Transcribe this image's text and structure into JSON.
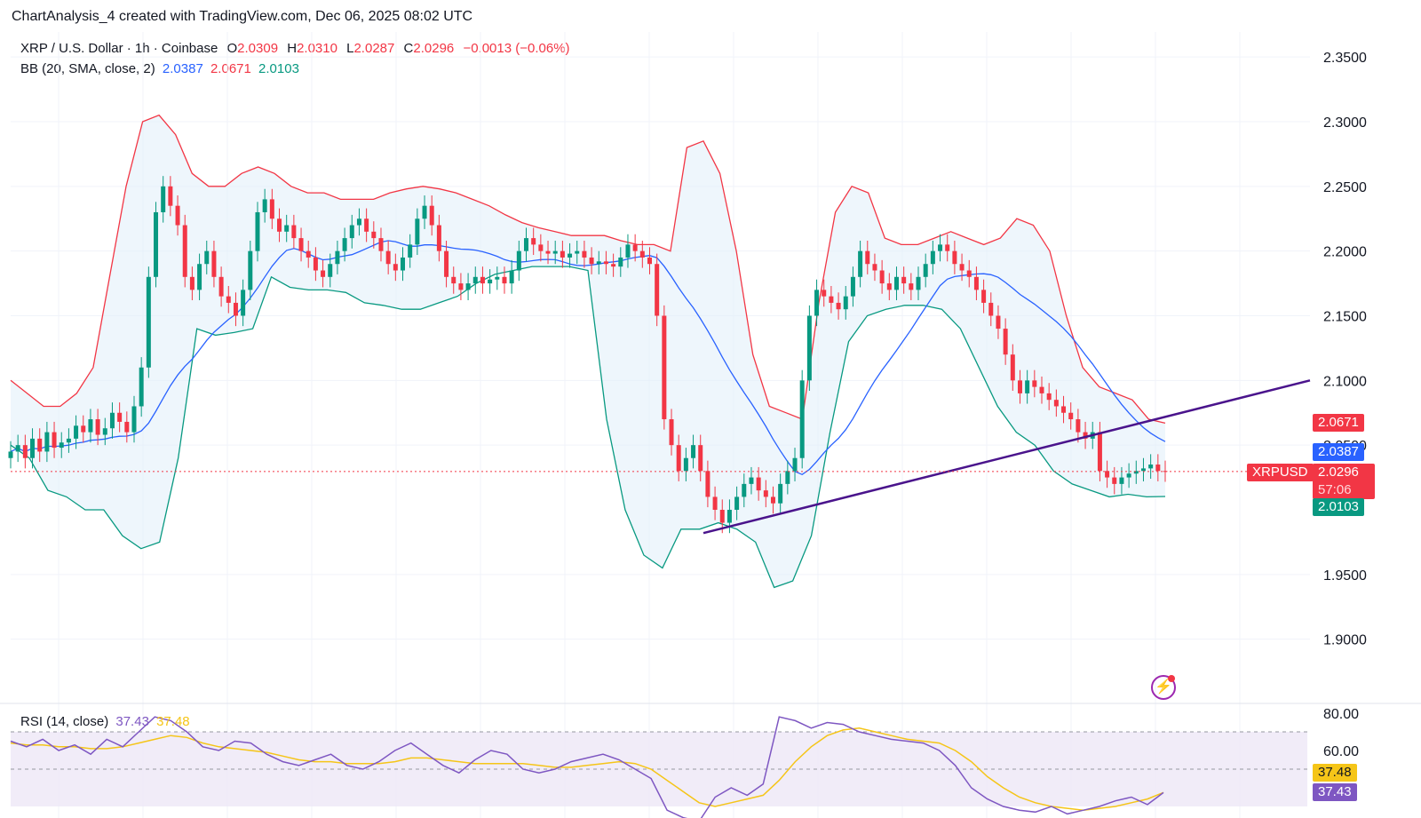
{
  "header": {
    "caption": "ChartAnalysis_4 created with TradingView.com, Dec 06, 2025 08:02 UTC"
  },
  "symbol": {
    "title": "XRP / U.S. Dollar · 1h · Coinbase",
    "o_label": "O",
    "o": "2.0309",
    "h_label": "H",
    "h": "2.0310",
    "l_label": "L",
    "l": "2.0287",
    "c_label": "C",
    "c": "2.0296",
    "change": "−0.0013 (−0.06%)"
  },
  "bb": {
    "label": "BB (20, SMA, close, 2)",
    "basis": "2.0387",
    "upper": "2.0671",
    "lower": "2.0103"
  },
  "rsi": {
    "label": "RSI (14, close)",
    "value": "37.43",
    "ma": "37.48"
  },
  "price_tags": {
    "upper": "2.0671",
    "basis": "2.0387",
    "symbol": "XRPUSD",
    "last": "2.0296",
    "countdown": "57:06",
    "lower": "2.0103",
    "rsi_ma": "37.48",
    "rsi": "37.43"
  },
  "colors": {
    "up": "#089981",
    "down": "#f23645",
    "bb_basis": "#2962ff",
    "bb_upper": "#f23645",
    "bb_lower": "#089981",
    "bb_fill": "#e3f0fa",
    "trendline": "#4a148c",
    "rsi_line": "#7e57c2",
    "rsi_ma": "#f5c518",
    "rsi_band": "#ede7f6"
  },
  "icons": {
    "flash": "lightning-icon"
  },
  "chart_data": {
    "type": "candlestick",
    "price_axis": [
      "2.3500",
      "2.3000",
      "2.2500",
      "2.2000",
      "2.1500",
      "2.1000",
      "2.0500",
      "1.9500",
      "1.9000"
    ],
    "ylim": [
      1.87,
      2.37
    ],
    "rsi_axis": [
      "80.00",
      "60.00"
    ],
    "rsi_ylim": [
      20,
      80
    ],
    "grid": true,
    "close_path": [
      2.045,
      2.05,
      2.04,
      2.055,
      2.045,
      2.06,
      2.048,
      2.052,
      2.055,
      2.065,
      2.06,
      2.07,
      2.058,
      2.063,
      2.075,
      2.068,
      2.06,
      2.08,
      2.11,
      2.18,
      2.23,
      2.25,
      2.235,
      2.22,
      2.18,
      2.17,
      2.19,
      2.2,
      2.18,
      2.165,
      2.16,
      2.15,
      2.17,
      2.2,
      2.23,
      2.24,
      2.225,
      2.215,
      2.22,
      2.21,
      2.2,
      2.195,
      2.185,
      2.18,
      2.19,
      2.2,
      2.21,
      2.22,
      2.225,
      2.215,
      2.21,
      2.2,
      2.19,
      2.185,
      2.195,
      2.205,
      2.225,
      2.235,
      2.22,
      2.2,
      2.18,
      2.175,
      2.17,
      2.175,
      2.18,
      2.175,
      2.178,
      2.18,
      2.175,
      2.185,
      2.2,
      2.21,
      2.205,
      2.2,
      2.198,
      2.2,
      2.195,
      2.198,
      2.2,
      2.195,
      2.19,
      2.192,
      2.19,
      2.188,
      2.195,
      2.205,
      2.2,
      2.195,
      2.19,
      2.15,
      2.07,
      2.05,
      2.03,
      2.04,
      2.05,
      2.03,
      2.01,
      2.0,
      1.99,
      2.0,
      2.01,
      2.02,
      2.025,
      2.015,
      2.01,
      2.005,
      2.02,
      2.03,
      2.04,
      2.1,
      2.15,
      2.17,
      2.165,
      2.16,
      2.155,
      2.165,
      2.18,
      2.2,
      2.19,
      2.185,
      2.175,
      2.17,
      2.18,
      2.175,
      2.17,
      2.18,
      2.19,
      2.2,
      2.205,
      2.2,
      2.19,
      2.185,
      2.18,
      2.17,
      2.16,
      2.15,
      2.14,
      2.12,
      2.1,
      2.09,
      2.1,
      2.095,
      2.09,
      2.085,
      2.08,
      2.075,
      2.07,
      2.06,
      2.055,
      2.06,
      2.03,
      2.025,
      2.02,
      2.025,
      2.028,
      2.03,
      2.032,
      2.035,
      2.03,
      2.0296
    ],
    "bb_upper_path": [
      2.1,
      2.09,
      2.08,
      2.08,
      2.09,
      2.11,
      2.18,
      2.25,
      2.3,
      2.305,
      2.29,
      2.26,
      2.25,
      2.25,
      2.26,
      2.265,
      2.26,
      2.25,
      2.245,
      2.245,
      2.24,
      2.24,
      2.24,
      2.245,
      2.248,
      2.25,
      2.248,
      2.245,
      2.24,
      2.235,
      2.228,
      2.222,
      2.218,
      2.215,
      2.212,
      2.212,
      2.212,
      2.208,
      2.205,
      2.205,
      2.2,
      2.28,
      2.285,
      2.26,
      2.2,
      2.12,
      2.08,
      2.075,
      2.07,
      2.16,
      2.23,
      2.25,
      2.245,
      2.21,
      2.205,
      2.205,
      2.21,
      2.215,
      2.21,
      2.205,
      2.21,
      2.225,
      2.22,
      2.2,
      2.15,
      2.11,
      2.095,
      2.09,
      2.085,
      2.07,
      2.067
    ],
    "bb_lower_path": [
      2.05,
      2.04,
      2.015,
      2.01,
      2.0,
      2.0,
      1.98,
      1.97,
      1.975,
      2.04,
      2.14,
      2.135,
      2.137,
      2.14,
      2.18,
      2.172,
      2.17,
      2.17,
      2.168,
      2.16,
      2.158,
      2.155,
      2.155,
      2.16,
      2.165,
      2.175,
      2.182,
      2.185,
      2.188,
      2.188,
      2.188,
      2.185,
      2.07,
      2.0,
      1.965,
      1.955,
      1.985,
      1.985,
      1.99,
      1.985,
      1.975,
      1.94,
      1.945,
      1.98,
      2.06,
      2.13,
      2.15,
      2.155,
      2.158,
      2.158,
      2.155,
      2.14,
      2.11,
      2.08,
      2.06,
      2.05,
      2.03,
      2.02,
      2.015,
      2.01,
      2.012,
      2.01,
      2.0103
    ],
    "trendline": {
      "start": 1.982,
      "end": 2.1
    },
    "rsi_path": [
      65,
      62,
      66,
      60,
      63,
      58,
      66,
      62,
      70,
      78,
      76,
      70,
      62,
      60,
      65,
      64,
      58,
      54,
      52,
      55,
      58,
      52,
      50,
      54,
      60,
      64,
      58,
      52,
      48,
      55,
      60,
      58,
      50,
      48,
      50,
      54,
      56,
      58,
      55,
      50,
      45,
      28,
      24,
      22,
      35,
      40,
      36,
      42,
      78,
      76,
      72,
      75,
      74,
      70,
      68,
      66,
      65,
      64,
      60,
      52,
      40,
      34,
      30,
      28,
      27,
      30,
      26,
      28,
      30,
      33,
      35,
      31,
      37.43
    ],
    "rsi_ma_path": [
      64,
      63,
      63,
      62,
      62,
      61,
      61,
      62,
      64,
      66,
      68,
      67,
      64,
      62,
      61,
      60,
      59,
      57,
      55,
      54,
      54,
      53,
      53,
      53,
      54,
      56,
      56,
      55,
      54,
      53,
      53,
      53,
      53,
      52,
      51,
      51,
      52,
      53,
      54,
      53,
      50,
      44,
      38,
      32,
      30,
      32,
      34,
      36,
      44,
      54,
      62,
      68,
      71,
      72,
      70,
      68,
      66,
      65,
      64,
      60,
      54,
      46,
      40,
      35,
      32,
      30,
      29,
      28,
      29,
      30,
      32,
      34,
      37.48
    ]
  }
}
